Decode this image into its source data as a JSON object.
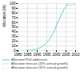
{
  "chart_data": {
    "type": "line",
    "ylabel": "Allocation (%)",
    "xlim": [
      1980,
      2010
    ],
    "ylim": [
      0,
      100
    ],
    "xticks": [
      1980,
      1985,
      1990,
      1995,
      2000,
      2005,
      2010
    ],
    "yticks": [
      0,
      10,
      20,
      30,
      40,
      50,
      60,
      70,
      80,
      90,
      100
    ],
    "grid": true,
    "legend": "bottom",
    "series": [
      {
        "name": "Allocated IPv4 addresses",
        "color": "#66ccdd",
        "line_style": "solid",
        "x": [
          1980,
          1981,
          1982,
          1983,
          1984,
          1985,
          1986,
          1987,
          1988,
          1989,
          1990,
          1991,
          1992,
          1993,
          1994,
          1995,
          1996,
          1997,
          1998,
          1999,
          2000,
          2001,
          2002,
          2003,
          2004,
          2005,
          2006
        ],
        "values": [
          0.1,
          0.15,
          0.2,
          0.3,
          0.4,
          0.6,
          0.9,
          1.3,
          2.0,
          2.8,
          4.0,
          5.5,
          7.5,
          10.0,
          13.0,
          17.0,
          22.0,
          28.0,
          35.0,
          43.0,
          53.0,
          63.0,
          72.0,
          80.0,
          88.0,
          94.0,
          100.0
        ]
      },
      {
        "name": "Allocation forecast (20% annual growth)",
        "color": "#aaddee",
        "line_style": "dashed",
        "x": [
          2005,
          2010
        ],
        "values": [
          94.0,
          100.0
        ]
      },
      {
        "name": "Allocation forecast (15% annual growth)",
        "color": "#cceeee",
        "line_style": "dashed",
        "x": [
          2005,
          2010
        ],
        "values": [
          94.0,
          98.0
        ]
      }
    ]
  }
}
